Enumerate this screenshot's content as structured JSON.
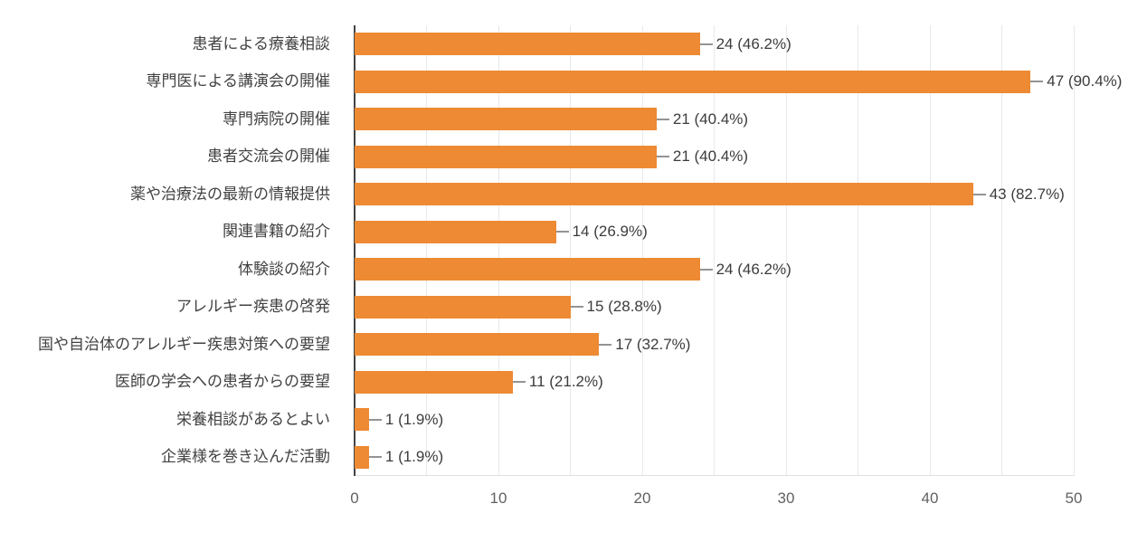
{
  "chart_data": {
    "type": "bar",
    "orientation": "horizontal",
    "title": "",
    "categories": [
      "患者による療養相談",
      "専門医による講演会の開催",
      "専門病院の開催",
      "患者交流会の開催",
      "薬や治療法の最新の情報提供",
      "関連書籍の紹介",
      "体験談の紹介",
      "アレルギー疾患の啓発",
      "国や自治体のアレルギー疾患対策への要望",
      "医師の学会への患者からの要望",
      "栄養相談があるとよい",
      "企業様を巻き込んだ活動"
    ],
    "values": [
      24,
      47,
      21,
      21,
      43,
      14,
      24,
      15,
      17,
      11,
      1,
      1
    ],
    "value_labels": [
      "24 (46.2%)",
      "47 (90.4%)",
      "21 (40.4%)",
      "21 (40.4%)",
      "43 (82.7%)",
      "14 (26.9%)",
      "24 (46.2%)",
      "15 (28.8%)",
      "17 (32.7%)",
      "11 (21.2%)",
      "1 (1.9%)",
      "1 (1.9%)"
    ],
    "xlabel": "",
    "ylabel": "",
    "x_axis": {
      "min": 0,
      "max": 50,
      "tick_labels": [
        "0",
        "10",
        "20",
        "30",
        "40",
        "50"
      ],
      "tick_values": [
        0,
        10,
        20,
        30,
        40,
        50
      ],
      "gridline_step": 5
    },
    "legend": "none",
    "grid": "vertical-on",
    "colors": {
      "bar": "#ed8a33",
      "axis_line": "#424242",
      "gridline": "#e9e9e9",
      "baseline": "#e0e0e0",
      "stem": "#949494",
      "category_text": "#424242",
      "value_text": "#3c3c3c",
      "tick_text": "#616161",
      "background": "#ffffff"
    }
  }
}
